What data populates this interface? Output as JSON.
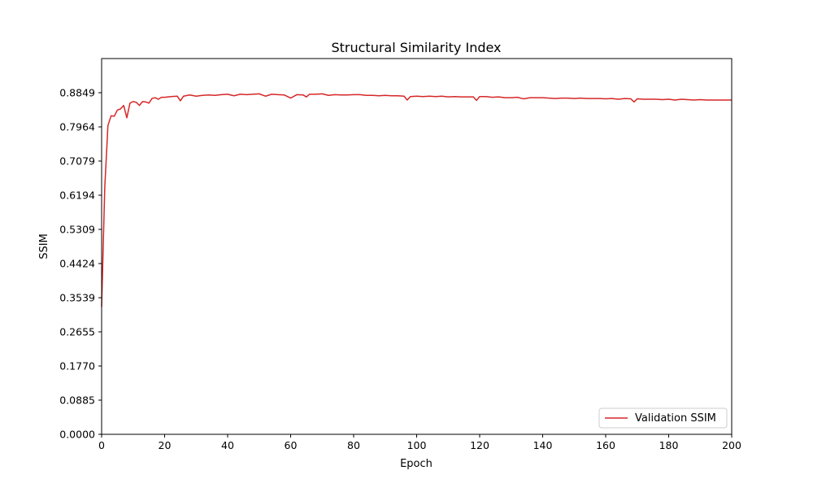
{
  "chart_data": {
    "type": "line",
    "title": "Structural Similarity Index",
    "xlabel": "Epoch",
    "ylabel": "SSIM",
    "xlim": [
      0,
      200
    ],
    "ylim": [
      0,
      0.9734
    ],
    "xticks": [
      "0",
      "20",
      "40",
      "60",
      "80",
      "100",
      "120",
      "140",
      "160",
      "180",
      "200"
    ],
    "yticks": [
      "0.0000",
      "0.0885",
      "0.1770",
      "0.2655",
      "0.3539",
      "0.4424",
      "0.5309",
      "0.6194",
      "0.7079",
      "0.7964",
      "0.8849"
    ],
    "grid": false,
    "legend_position": "lower-right",
    "series": [
      {
        "name": "Validation SSIM",
        "color": "#d62728",
        "x": [
          0,
          1,
          2,
          3,
          4,
          5,
          6,
          7,
          8,
          9,
          10,
          11,
          12,
          13,
          14,
          15,
          16,
          17,
          18,
          19,
          20,
          22,
          24,
          25,
          26,
          28,
          30,
          32,
          34,
          36,
          38,
          40,
          42,
          44,
          46,
          48,
          50,
          52,
          54,
          56,
          58,
          60,
          62,
          64,
          65,
          66,
          68,
          70,
          72,
          74,
          76,
          78,
          80,
          82,
          84,
          86,
          88,
          90,
          92,
          94,
          96,
          97,
          98,
          100,
          102,
          104,
          106,
          108,
          110,
          112,
          114,
          116,
          118,
          119,
          120,
          122,
          124,
          126,
          128,
          130,
          132,
          134,
          136,
          138,
          140,
          142,
          144,
          146,
          148,
          150,
          152,
          154,
          156,
          158,
          160,
          162,
          164,
          166,
          168,
          169,
          170,
          172,
          174,
          176,
          178,
          180,
          182,
          184,
          186,
          188,
          190,
          192,
          194,
          196,
          198,
          200
        ],
        "y": [
          0.33,
          0.64,
          0.8,
          0.825,
          0.824,
          0.84,
          0.843,
          0.852,
          0.82,
          0.858,
          0.862,
          0.86,
          0.852,
          0.862,
          0.861,
          0.858,
          0.87,
          0.872,
          0.868,
          0.873,
          0.873,
          0.875,
          0.876,
          0.864,
          0.876,
          0.879,
          0.876,
          0.878,
          0.879,
          0.878,
          0.88,
          0.881,
          0.877,
          0.881,
          0.88,
          0.881,
          0.882,
          0.876,
          0.881,
          0.88,
          0.879,
          0.871,
          0.88,
          0.879,
          0.874,
          0.881,
          0.881,
          0.882,
          0.878,
          0.88,
          0.879,
          0.879,
          0.88,
          0.88,
          0.878,
          0.878,
          0.877,
          0.878,
          0.877,
          0.877,
          0.876,
          0.866,
          0.875,
          0.876,
          0.875,
          0.876,
          0.875,
          0.876,
          0.874,
          0.875,
          0.874,
          0.874,
          0.874,
          0.865,
          0.875,
          0.875,
          0.873,
          0.874,
          0.872,
          0.872,
          0.873,
          0.869,
          0.872,
          0.872,
          0.872,
          0.871,
          0.87,
          0.871,
          0.871,
          0.87,
          0.871,
          0.87,
          0.87,
          0.87,
          0.869,
          0.87,
          0.868,
          0.87,
          0.869,
          0.861,
          0.869,
          0.868,
          0.868,
          0.868,
          0.867,
          0.868,
          0.866,
          0.868,
          0.867,
          0.866,
          0.867,
          0.866,
          0.866,
          0.866,
          0.866,
          0.866
        ]
      }
    ]
  }
}
